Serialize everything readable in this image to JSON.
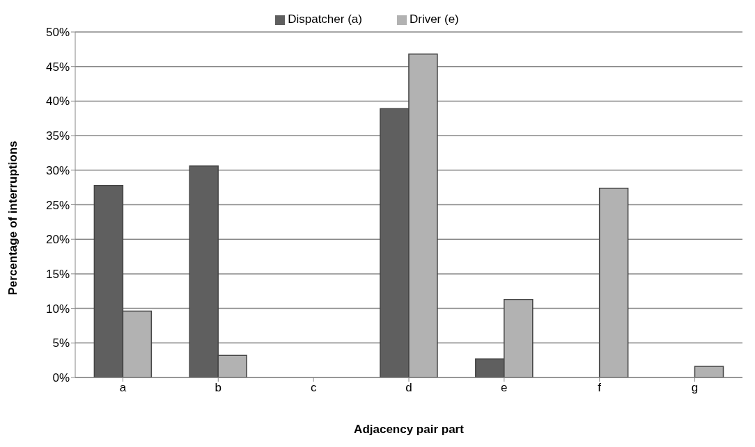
{
  "chart_data": {
    "type": "bar",
    "xlabel": "Adjacency pair part",
    "ylabel": "Percentage of interruptions",
    "categories": [
      "a",
      "b",
      "c",
      "d",
      "e",
      "f",
      "g"
    ],
    "series": [
      {
        "name": "Dispatcher (a)",
        "color": "#5f5f5f",
        "values": [
          27.8,
          30.6,
          0,
          38.9,
          2.7,
          0,
          0
        ]
      },
      {
        "name": "Driver (e)",
        "color": "#b2b2b2",
        "values": [
          9.6,
          3.2,
          0,
          46.8,
          11.3,
          27.4,
          1.6
        ]
      }
    ],
    "ylim": [
      0,
      50
    ],
    "yticks": [
      {
        "value": 0,
        "label": "0%"
      },
      {
        "value": 5,
        "label": "5%"
      },
      {
        "value": 10,
        "label": "10%"
      },
      {
        "value": 15,
        "label": "15%"
      },
      {
        "value": 20,
        "label": "20%"
      },
      {
        "value": 25,
        "label": "25%"
      },
      {
        "value": 30,
        "label": "30%"
      },
      {
        "value": 35,
        "label": "35%"
      },
      {
        "value": 40,
        "label": "40%"
      },
      {
        "value": 45,
        "label": "45%"
      },
      {
        "value": 50,
        "label": "50%"
      }
    ],
    "grid": "y",
    "legend": "top"
  }
}
